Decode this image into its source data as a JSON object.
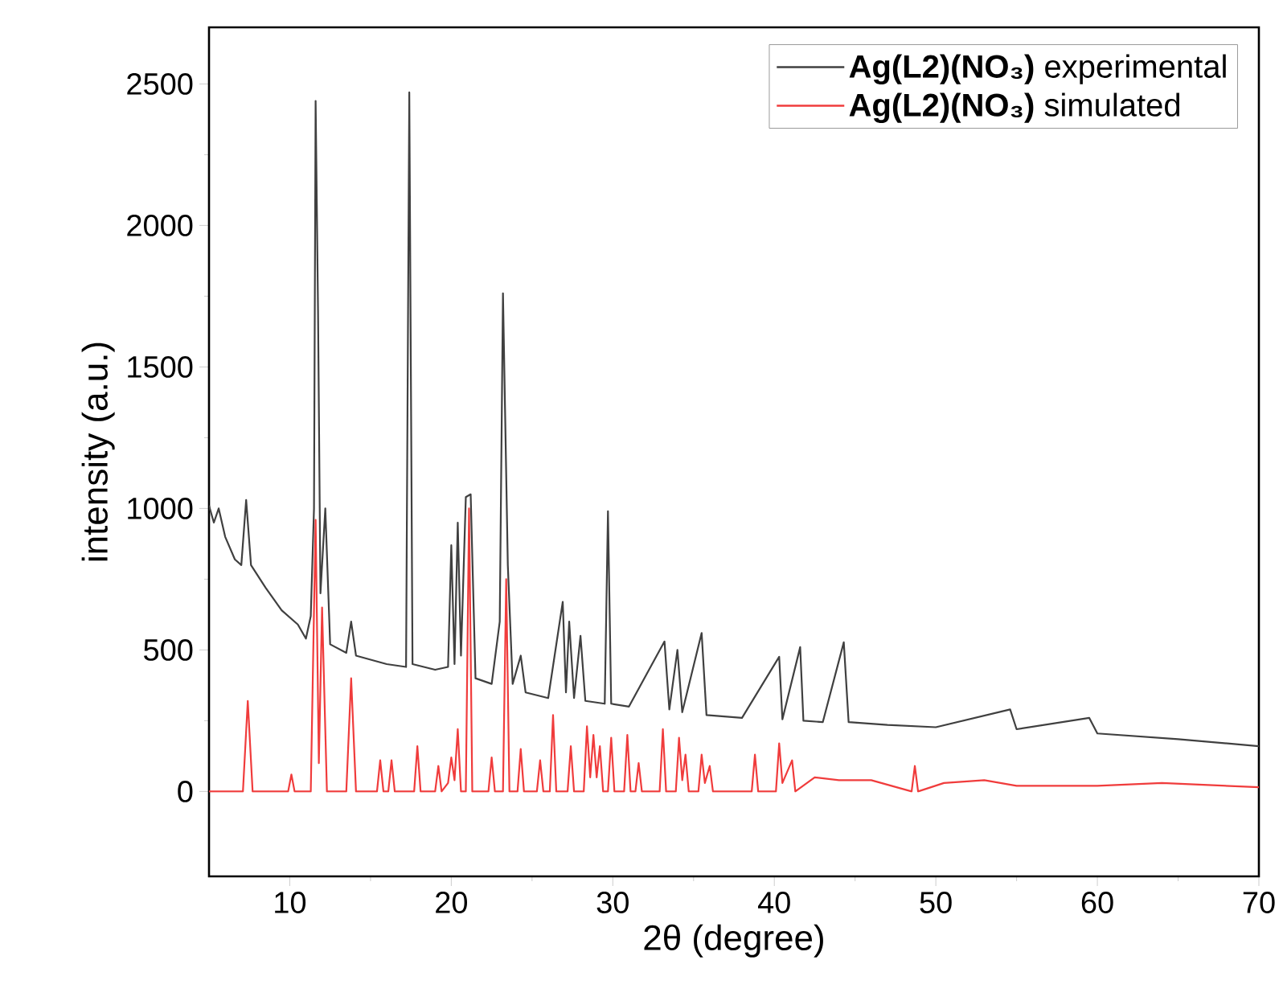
{
  "chart_data": {
    "type": "line",
    "xlabel": "2θ (degree)",
    "ylabel": "intensity (a.u.)",
    "xlim": [
      5,
      70
    ],
    "ylim": [
      -300,
      2700
    ],
    "xticks": [
      10,
      20,
      30,
      40,
      50,
      60,
      70
    ],
    "yticks": [
      0,
      500,
      1000,
      1500,
      2000,
      2500
    ],
    "legend": "top right",
    "series": [
      {
        "name": "**Ag(L2)(NO₃)** experimental",
        "color": "#404040",
        "x": [
          5.0,
          5.3,
          5.6,
          6.0,
          6.6,
          7.0,
          7.3,
          7.6,
          8.5,
          9.5,
          10.5,
          11.0,
          11.3,
          11.5,
          11.6,
          11.75,
          11.9,
          12.2,
          12.5,
          13.5,
          13.8,
          14.1,
          16.0,
          17.2,
          17.4,
          17.6,
          19.0,
          19.8,
          20.0,
          20.2,
          20.4,
          20.6,
          20.9,
          21.2,
          21.5,
          22.5,
          23.0,
          23.2,
          23.5,
          23.8,
          24.3,
          24.6,
          26.0,
          26.9,
          27.1,
          27.3,
          27.6,
          28.0,
          28.3,
          29.5,
          29.7,
          29.9,
          31.0,
          33.2,
          33.5,
          34.0,
          34.3,
          35.5,
          35.8,
          38.0,
          40.3,
          40.5,
          41.6,
          41.8,
          43.0,
          44.3,
          44.6,
          47.0,
          50.0,
          54.6,
          55.0,
          59.5,
          60.0,
          65.0,
          70.0
        ],
        "values": [
          1010,
          950,
          1000,
          900,
          820,
          800,
          1030,
          800,
          720,
          640,
          590,
          540,
          620,
          1000,
          2440,
          1700,
          700,
          1000,
          520,
          490,
          600,
          480,
          450,
          440,
          2470,
          450,
          430,
          440,
          870,
          450,
          950,
          480,
          1040,
          1050,
          400,
          380,
          600,
          1760,
          800,
          380,
          480,
          350,
          330,
          670,
          350,
          600,
          330,
          550,
          320,
          310,
          990,
          310,
          300,
          530,
          290,
          500,
          280,
          560,
          270,
          260,
          476,
          255,
          510,
          250,
          245,
          527,
          245,
          235,
          227,
          290,
          220,
          260,
          205,
          185,
          160
        ]
      },
      {
        "name": "**Ag(L2)(NO₃)** simulated",
        "color": "#f03c3c",
        "x": [
          5,
          7.1,
          7.4,
          7.7,
          9.9,
          10.1,
          10.3,
          11.3,
          11.6,
          11.8,
          12.0,
          12.3,
          13.5,
          13.8,
          14.1,
          15.4,
          15.6,
          15.8,
          16.1,
          16.3,
          16.5,
          17.7,
          17.9,
          18.1,
          19.0,
          19.2,
          19.4,
          19.8,
          20.0,
          20.2,
          20.4,
          20.6,
          20.9,
          21.1,
          21.3,
          22.3,
          22.5,
          22.7,
          23.2,
          23.4,
          23.6,
          24.1,
          24.3,
          24.5,
          25.3,
          25.5,
          25.7,
          26.1,
          26.3,
          26.5,
          27.2,
          27.4,
          27.6,
          28.2,
          28.4,
          28.6,
          28.8,
          29.0,
          29.2,
          29.4,
          29.7,
          29.9,
          30.1,
          30.7,
          30.9,
          31.1,
          31.4,
          31.6,
          31.8,
          32.9,
          33.1,
          33.3,
          33.9,
          34.1,
          34.3,
          34.5,
          34.7,
          35.3,
          35.5,
          35.7,
          36.0,
          36.2,
          38.6,
          38.8,
          39.0,
          40.1,
          40.3,
          40.5,
          41.1,
          41.3,
          42.5,
          44.0,
          46.0,
          48.5,
          48.7,
          48.9,
          50.5,
          53.0,
          55.0,
          60.0,
          64.0,
          70.0
        ],
        "values": [
          0,
          0,
          320,
          0,
          0,
          60,
          0,
          0,
          960,
          100,
          650,
          0,
          0,
          400,
          0,
          0,
          110,
          0,
          0,
          110,
          0,
          0,
          160,
          0,
          0,
          90,
          0,
          30,
          120,
          40,
          220,
          0,
          0,
          1000,
          0,
          0,
          120,
          0,
          0,
          750,
          0,
          0,
          150,
          0,
          0,
          110,
          0,
          0,
          270,
          0,
          0,
          160,
          0,
          0,
          230,
          50,
          200,
          50,
          160,
          0,
          0,
          190,
          0,
          0,
          200,
          0,
          0,
          100,
          0,
          0,
          220,
          0,
          0,
          190,
          40,
          130,
          0,
          0,
          130,
          30,
          90,
          0,
          0,
          130,
          0,
          0,
          170,
          30,
          110,
          0,
          50,
          40,
          40,
          0,
          90,
          0,
          30,
          40,
          20,
          20,
          30,
          15
        ]
      }
    ]
  }
}
